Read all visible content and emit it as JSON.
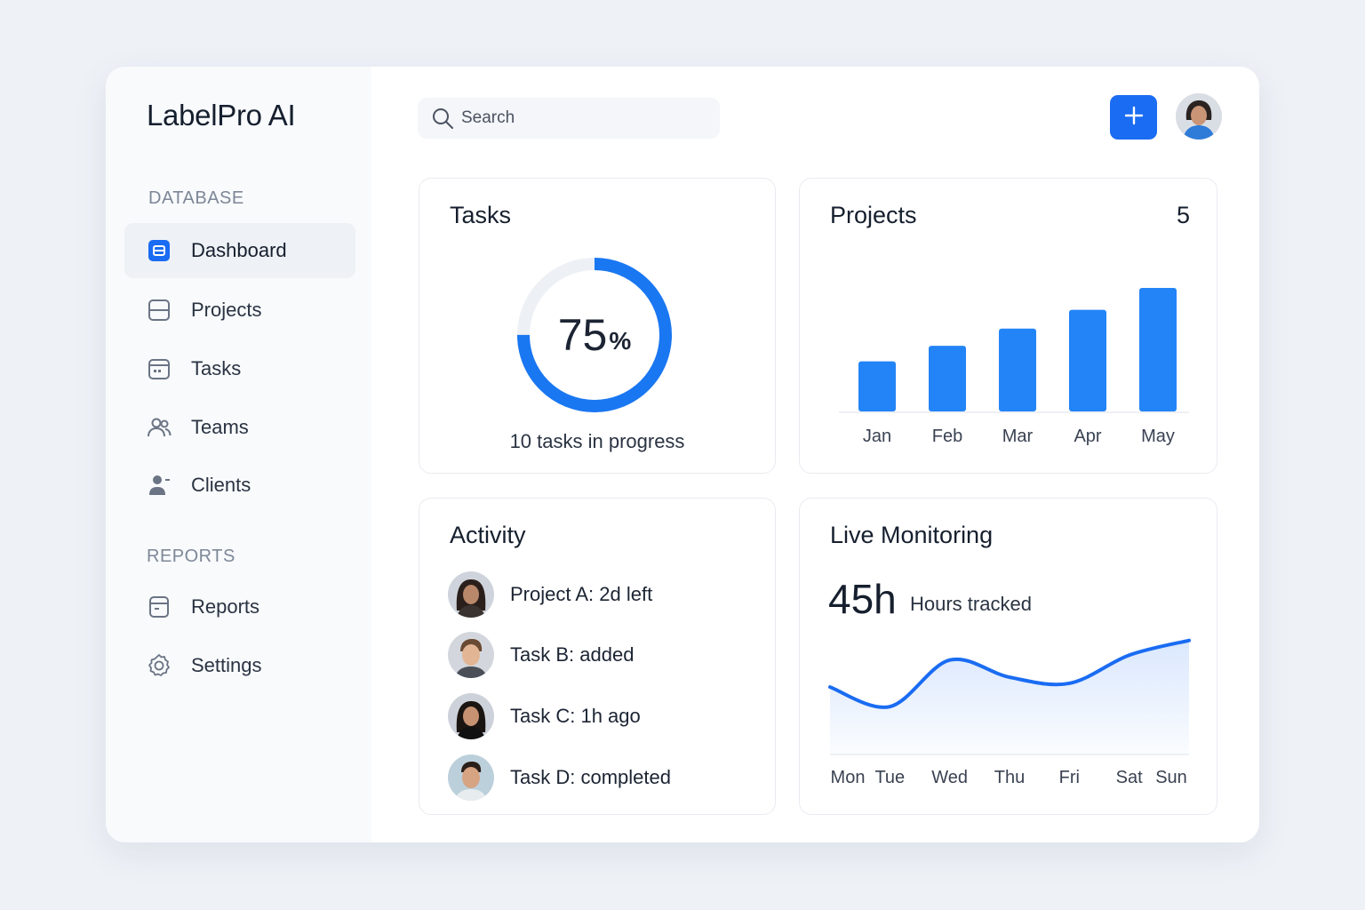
{
  "app": {
    "title": "LabelPro AI"
  },
  "sidebar": {
    "sections": [
      {
        "label": "DATABASE"
      },
      {
        "label": "REPORTS"
      }
    ],
    "items": [
      {
        "label": "Dashboard",
        "icon": "dashboard-icon",
        "active": true
      },
      {
        "label": "Projects",
        "icon": "projects-icon"
      },
      {
        "label": "Tasks",
        "icon": "calendar-icon"
      },
      {
        "label": "Teams",
        "icon": "teams-icon"
      },
      {
        "label": "Clients",
        "icon": "client-icon"
      },
      {
        "label": "Reports",
        "icon": "report-icon"
      },
      {
        "label": "Settings",
        "icon": "gear-icon"
      }
    ]
  },
  "header": {
    "search_placeholder": "Search",
    "add_button_icon": "plus-icon",
    "accent": "#1a6cf2"
  },
  "tasks": {
    "title": "Tasks",
    "percent_value": "75",
    "percent_sign": "%",
    "progress": 0.75,
    "subtitle": "10 tasks in progress"
  },
  "projects": {
    "title": "Projects",
    "count": "5"
  },
  "activity": {
    "title": "Activity",
    "items": [
      {
        "text": "Project A: 2d left"
      },
      {
        "text": "Task B: added"
      },
      {
        "text": "Task C: 1h ago"
      },
      {
        "text": "Task D: completed"
      }
    ]
  },
  "live": {
    "title": "Live Monitoring",
    "hours": "45h",
    "hours_label": "Hours tracked"
  },
  "chart_data": [
    {
      "type": "bar",
      "categories": [
        "Jan",
        "Feb",
        "Mar",
        "Apr",
        "May"
      ],
      "values": [
        32,
        42,
        53,
        65,
        79
      ],
      "ylim": [
        0,
        100
      ],
      "color": "#2384f7",
      "title": "",
      "xlabel": "",
      "ylabel": ""
    },
    {
      "type": "area",
      "x": [
        "Mon",
        "Tue",
        "Wed",
        "Thu",
        "Fri",
        "Sat",
        "Sun"
      ],
      "values": [
        55,
        39,
        77,
        63,
        58,
        81,
        93
      ],
      "ylim": [
        0,
        100
      ],
      "color": "#1a6cf2",
      "title": "",
      "xlabel": "",
      "ylabel": ""
    }
  ]
}
